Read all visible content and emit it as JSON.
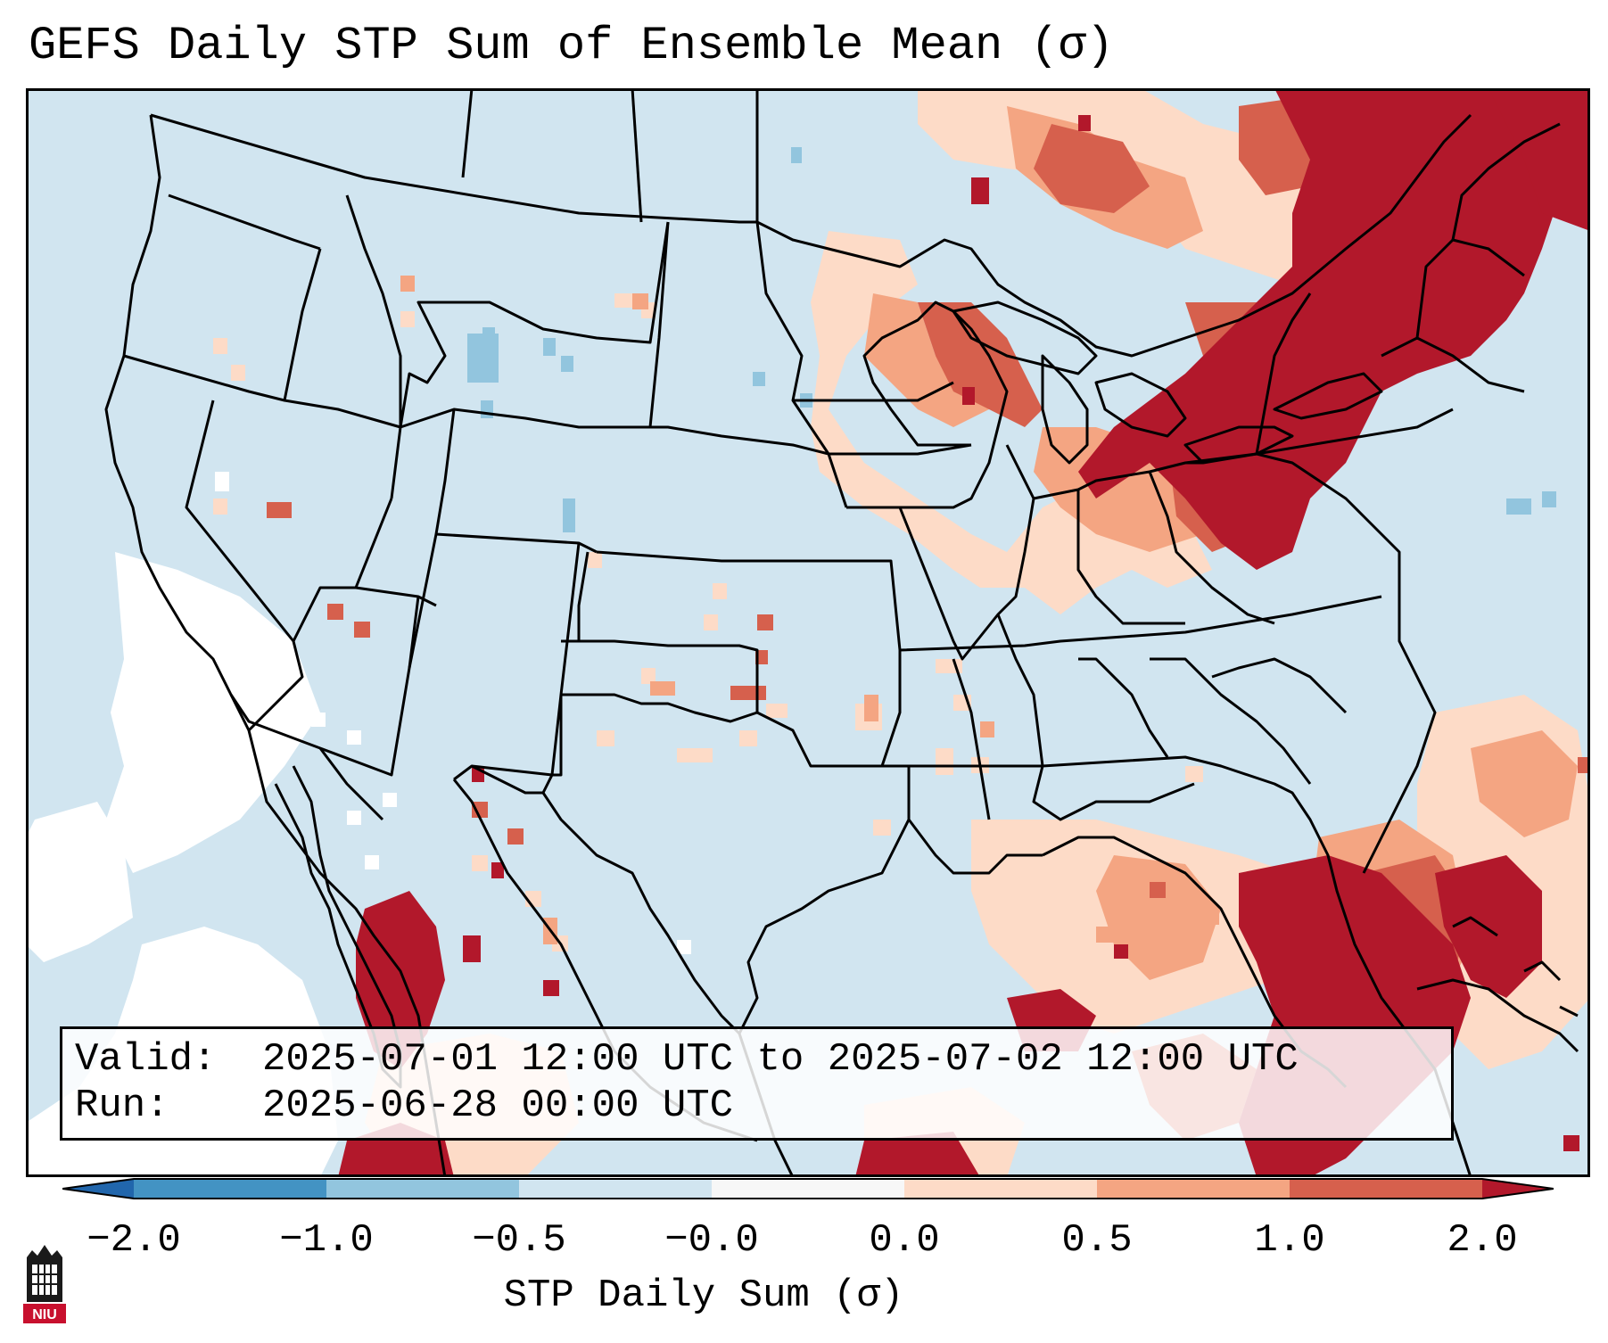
{
  "title": "GEFS Daily STP Sum of Ensemble Mean (σ)",
  "info": {
    "valid_label": "Valid:",
    "valid_value": "2025-07-01 12:00 UTC to 2025-07-02 12:00 UTC",
    "run_label": "Run:",
    "run_value": "2025-06-28 00:00 UTC"
  },
  "colorbar": {
    "label": "STP Daily Sum (σ)",
    "ticks": [
      "−2.0",
      "−1.0",
      "−0.5",
      "−0.0",
      "0.0",
      "0.5",
      "1.0",
      "2.0"
    ],
    "bins": [
      {
        "range": "<-2.0",
        "color": "#2166ac"
      },
      {
        "range": "-2.0 to -1.0",
        "color": "#4393c3"
      },
      {
        "range": "-1.0 to -0.5",
        "color": "#92c5de"
      },
      {
        "range": "-0.5 to -0.0",
        "color": "#d1e5f0"
      },
      {
        "range": "-0.0 to 0.0",
        "color": "#f7f7f7"
      },
      {
        "range": "0.0 to 0.5",
        "color": "#fddbc7"
      },
      {
        "range": "0.5 to 1.0",
        "color": "#f4a582"
      },
      {
        "range": "1.0 to 2.0",
        "color": "#d6604d"
      },
      {
        "range": ">2.0",
        "color": "#b2182b"
      }
    ]
  },
  "map": {
    "region": "Contiguous United States and surrounding areas",
    "background_color": "#d1e5f0",
    "zero_color": "#ffffff",
    "high_anomaly_regions": [
      {
        "region": "Northeast US / New England / Quebec",
        "level": ">2.0"
      },
      {
        "region": "Pennsylvania / New York / Ohio",
        "level": ">2.0"
      },
      {
        "region": "Wisconsin / Minnesota / Michigan",
        "level": "1.0 to 2.0"
      },
      {
        "region": "Florida / Bahamas / Atlantic",
        "level": ">2.0"
      },
      {
        "region": "Western Mexico",
        "level": ">2.0"
      },
      {
        "region": "Gulf of Mexico coast",
        "level": "0.5 to 1.0"
      }
    ]
  },
  "logo": {
    "text": "NIU"
  }
}
